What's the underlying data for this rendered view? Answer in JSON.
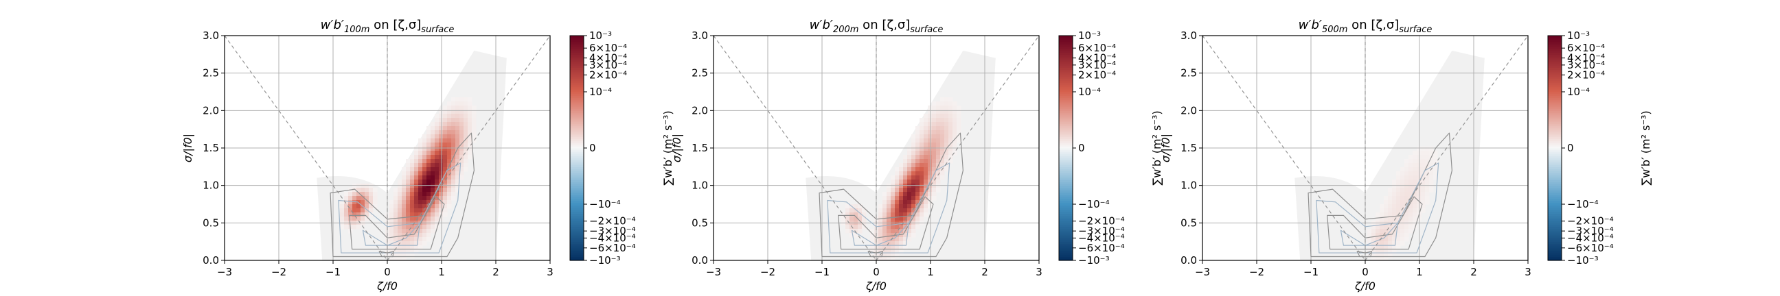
{
  "chart_data": [
    {
      "type": "heatmap",
      "title": "w′b′100m on [ζ,σ]surface",
      "title_parts": {
        "main": "w′b′",
        "sub": "100m",
        "mid": " on [ζ,σ]",
        "sub2": "surface"
      },
      "xlabel": "ζ/f0",
      "ylabel": "σ/|f0|",
      "cbar_label": "∑w′b′ (m² s⁻³)",
      "xlim": [
        -3,
        3
      ],
      "ylim": [
        0,
        3
      ],
      "x_ticks": [
        "−3",
        "−2",
        "−1",
        "0",
        "1",
        "2",
        "3"
      ],
      "y_ticks": [
        "0.0",
        "0.5",
        "1.0",
        "1.5",
        "2.0",
        "2.5",
        "3.0"
      ],
      "grid": true,
      "blobs": [
        {
          "x": 0.75,
          "y": 1.0,
          "sx": 0.42,
          "sy": 0.17,
          "tilt": 0.95,
          "amp": 1.0
        },
        {
          "x": -0.55,
          "y": 0.72,
          "sx": 0.1,
          "sy": 0.15,
          "tilt": -0.9,
          "amp": 0.55
        },
        {
          "x": 1.15,
          "y": 1.6,
          "sx": 0.28,
          "sy": 0.16,
          "tilt": 1.0,
          "amp": 0.18
        }
      ]
    },
    {
      "type": "heatmap",
      "title": "w′b′200m on [ζ,σ]surface",
      "title_parts": {
        "main": "w′b′",
        "sub": "200m",
        "mid": " on [ζ,σ]",
        "sub2": "surface"
      },
      "xlabel": "ζ/f0",
      "ylabel": "σ/|f0|",
      "cbar_label": "∑w′b′ (m² s⁻³)",
      "xlim": [
        -3,
        3
      ],
      "ylim": [
        0,
        3
      ],
      "x_ticks": [
        "−3",
        "−2",
        "−1",
        "0",
        "1",
        "2",
        "3"
      ],
      "y_ticks": [
        "0.0",
        "0.5",
        "1.0",
        "1.5",
        "2.0",
        "2.5",
        "3.0"
      ],
      "grid": true,
      "blobs": [
        {
          "x": 0.6,
          "y": 0.85,
          "sx": 0.4,
          "sy": 0.14,
          "tilt": 0.95,
          "amp": 0.85
        },
        {
          "x": -0.4,
          "y": 0.55,
          "sx": 0.1,
          "sy": 0.1,
          "tilt": -0.9,
          "amp": 0.2
        },
        {
          "x": 1.1,
          "y": 1.6,
          "sx": 0.3,
          "sy": 0.18,
          "tilt": 1.0,
          "amp": 0.15
        }
      ]
    },
    {
      "type": "heatmap",
      "title": "w′b′500m on [ζ,σ]surface",
      "title_parts": {
        "main": "w′b′",
        "sub": "500m",
        "mid": " on [ζ,σ]",
        "sub2": "surface"
      },
      "xlabel": "ζ/f0",
      "ylabel": "σ/|f0|",
      "cbar_label": "∑w′b′ (m² s⁻³)",
      "xlim": [
        -3,
        3
      ],
      "ylim": [
        0,
        3
      ],
      "x_ticks": [
        "−3",
        "−2",
        "−1",
        "0",
        "1",
        "2",
        "3"
      ],
      "y_ticks": [
        "0.0",
        "0.5",
        "1.0",
        "1.5",
        "2.0",
        "2.5",
        "3.0"
      ],
      "grid": true,
      "blobs": [
        {
          "x": 0.75,
          "y": 0.8,
          "sx": 0.5,
          "sy": 0.2,
          "tilt": 0.95,
          "amp": 0.07
        },
        {
          "x": 0.3,
          "y": 0.3,
          "sx": 0.15,
          "sy": 0.12,
          "tilt": 0.9,
          "amp": 0.08
        }
      ]
    }
  ],
  "colorbar": {
    "ticks": [
      "10⁻³",
      "6×10⁻⁴",
      "4×10⁻⁴",
      "3×10⁻⁴",
      "2×10⁻⁴",
      "10⁻⁴",
      "0",
      "−10⁻⁴",
      "−2×10⁻⁴",
      "−3×10⁻⁴",
      "−4×10⁻⁴",
      "−6×10⁻⁴",
      "−10⁻³"
    ],
    "tick_values": [
      0.001,
      0.0006,
      0.0004,
      0.0003,
      0.0002,
      0.0001,
      0,
      -0.0001,
      -0.0002,
      -0.0003,
      -0.0004,
      -0.0006,
      -0.001
    ],
    "scale": "symlog",
    "linthresh": 0.0001,
    "colors": {
      "top": "#67001f",
      "pos": "#d6604d",
      "mid": "#f7f7f7",
      "neg": "#4393c3",
      "bottom": "#053061"
    }
  }
}
